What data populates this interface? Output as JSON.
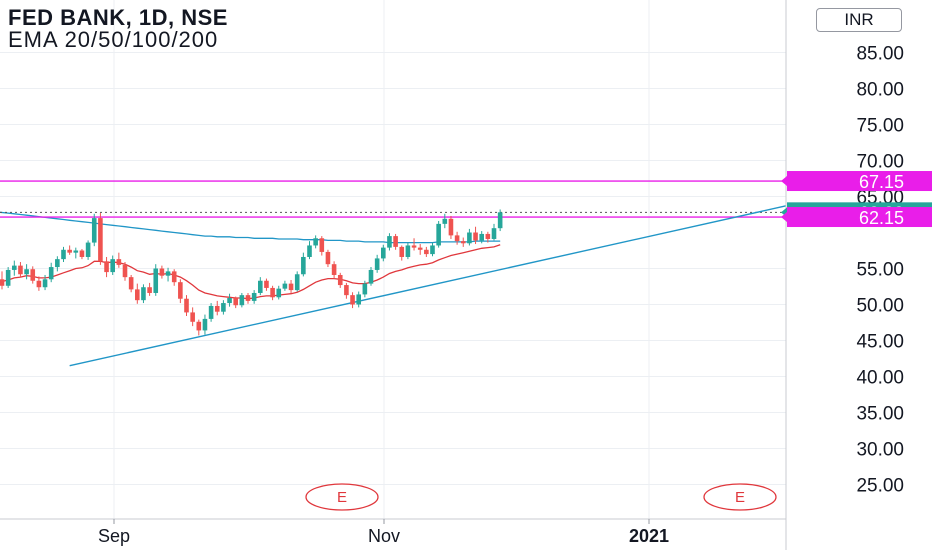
{
  "header": {
    "title": "FED BANK, 1D, NSE",
    "indicator": "EMA 20/50/100/200",
    "currency_button": "INR"
  },
  "colors": {
    "up": "#26a69a",
    "down": "#ef5350",
    "ema_short": "#e0373c",
    "ema_long": "#2196c7",
    "trendline": "#2196c7",
    "resistance_line": "#e91ee9",
    "current_price": "#26a69a",
    "grid": "#eceff3"
  },
  "chart_data": {
    "type": "candlestick",
    "title": "FED BANK, 1D, NSE",
    "subtitle": "EMA 20/50/100/200",
    "y_ticks": [
      "25.00",
      "30.00",
      "35.00",
      "40.00",
      "45.00",
      "50.00",
      "55.00",
      "65.00",
      "70.00",
      "75.00",
      "80.00",
      "85.00"
    ],
    "ylim": [
      22.5,
      89
    ],
    "x_ticks": [
      "Sep",
      "Nov",
      "2021"
    ],
    "grid": true,
    "price_labels": [
      {
        "text": "67.15",
        "value": 67.15,
        "kind": "horizontal-line"
      },
      {
        "text": "62.80",
        "value": 62.8,
        "kind": "last-price"
      },
      {
        "text": "62.15",
        "value": 62.15,
        "kind": "horizontal-line"
      }
    ],
    "event_markers": [
      "E",
      "E"
    ],
    "trendline": {
      "from": {
        "bar": 11,
        "value": 41.5
      },
      "to": {
        "bar": 95,
        "value": 63.7
      }
    },
    "candles": [
      {
        "o": 53.5,
        "h": 54.6,
        "l": 52.1,
        "c": 52.6
      },
      {
        "o": 52.6,
        "h": 55.2,
        "l": 52.3,
        "c": 54.8
      },
      {
        "o": 54.8,
        "h": 56.1,
        "l": 54.0,
        "c": 55.4
      },
      {
        "o": 55.4,
        "h": 55.9,
        "l": 53.8,
        "c": 54.2
      },
      {
        "o": 54.2,
        "h": 55.6,
        "l": 53.5,
        "c": 54.9
      },
      {
        "o": 54.9,
        "h": 55.3,
        "l": 52.9,
        "c": 53.3
      },
      {
        "o": 53.3,
        "h": 53.9,
        "l": 51.9,
        "c": 52.4
      },
      {
        "o": 52.4,
        "h": 54.1,
        "l": 52.0,
        "c": 53.5
      },
      {
        "o": 53.5,
        "h": 55.8,
        "l": 53.1,
        "c": 55.2
      },
      {
        "o": 55.2,
        "h": 56.7,
        "l": 54.6,
        "c": 56.3
      },
      {
        "o": 56.3,
        "h": 58.0,
        "l": 55.9,
        "c": 57.6
      },
      {
        "o": 57.6,
        "h": 58.2,
        "l": 56.9,
        "c": 57.2
      },
      {
        "o": 57.2,
        "h": 57.9,
        "l": 56.4,
        "c": 57.5
      },
      {
        "o": 57.5,
        "h": 57.7,
        "l": 56.3,
        "c": 56.6
      },
      {
        "o": 56.6,
        "h": 58.9,
        "l": 56.2,
        "c": 58.6
      },
      {
        "o": 58.6,
        "h": 62.6,
        "l": 58.1,
        "c": 62.0
      },
      {
        "o": 62.0,
        "h": 62.7,
        "l": 55.5,
        "c": 56.0
      },
      {
        "o": 56.0,
        "h": 56.6,
        "l": 53.8,
        "c": 54.5
      },
      {
        "o": 54.5,
        "h": 56.8,
        "l": 54.1,
        "c": 56.3
      },
      {
        "o": 56.3,
        "h": 57.2,
        "l": 55.1,
        "c": 55.5
      },
      {
        "o": 55.5,
        "h": 55.9,
        "l": 53.3,
        "c": 53.8
      },
      {
        "o": 53.8,
        "h": 54.1,
        "l": 51.7,
        "c": 52.1
      },
      {
        "o": 52.1,
        "h": 52.9,
        "l": 50.1,
        "c": 50.6
      },
      {
        "o": 50.6,
        "h": 52.8,
        "l": 50.2,
        "c": 52.4
      },
      {
        "o": 52.4,
        "h": 53.0,
        "l": 51.2,
        "c": 51.6
      },
      {
        "o": 51.6,
        "h": 55.6,
        "l": 51.2,
        "c": 55.0
      },
      {
        "o": 55.0,
        "h": 55.4,
        "l": 53.6,
        "c": 54.0
      },
      {
        "o": 54.0,
        "h": 55.1,
        "l": 53.2,
        "c": 54.6
      },
      {
        "o": 54.6,
        "h": 54.9,
        "l": 52.6,
        "c": 53.1
      },
      {
        "o": 53.1,
        "h": 53.5,
        "l": 50.2,
        "c": 50.8
      },
      {
        "o": 50.8,
        "h": 51.3,
        "l": 48.4,
        "c": 48.9
      },
      {
        "o": 48.9,
        "h": 49.6,
        "l": 47.0,
        "c": 47.6
      },
      {
        "o": 47.6,
        "h": 47.9,
        "l": 45.7,
        "c": 46.4
      },
      {
        "o": 46.4,
        "h": 48.6,
        "l": 45.8,
        "c": 48.0
      },
      {
        "o": 48.0,
        "h": 50.2,
        "l": 47.6,
        "c": 49.8
      },
      {
        "o": 49.8,
        "h": 50.5,
        "l": 48.5,
        "c": 49.0
      },
      {
        "o": 49.0,
        "h": 50.6,
        "l": 48.6,
        "c": 50.2
      },
      {
        "o": 50.2,
        "h": 51.5,
        "l": 49.7,
        "c": 50.9
      },
      {
        "o": 50.9,
        "h": 51.1,
        "l": 49.5,
        "c": 49.9
      },
      {
        "o": 49.9,
        "h": 51.6,
        "l": 49.6,
        "c": 51.3
      },
      {
        "o": 51.3,
        "h": 51.6,
        "l": 50.1,
        "c": 50.5
      },
      {
        "o": 50.5,
        "h": 52.0,
        "l": 50.1,
        "c": 51.6
      },
      {
        "o": 51.6,
        "h": 53.8,
        "l": 51.3,
        "c": 53.3
      },
      {
        "o": 53.3,
        "h": 53.6,
        "l": 51.9,
        "c": 52.3
      },
      {
        "o": 52.3,
        "h": 52.6,
        "l": 50.6,
        "c": 51.0
      },
      {
        "o": 51.0,
        "h": 52.6,
        "l": 50.7,
        "c": 52.2
      },
      {
        "o": 52.2,
        "h": 53.3,
        "l": 51.9,
        "c": 52.9
      },
      {
        "o": 52.9,
        "h": 53.4,
        "l": 51.6,
        "c": 52.0
      },
      {
        "o": 52.0,
        "h": 54.6,
        "l": 51.8,
        "c": 54.2
      },
      {
        "o": 54.2,
        "h": 57.2,
        "l": 53.9,
        "c": 56.6
      },
      {
        "o": 56.6,
        "h": 58.8,
        "l": 56.3,
        "c": 58.2
      },
      {
        "o": 58.2,
        "h": 59.6,
        "l": 57.8,
        "c": 59.2
      },
      {
        "o": 59.2,
        "h": 59.5,
        "l": 56.8,
        "c": 57.3
      },
      {
        "o": 57.3,
        "h": 57.6,
        "l": 55.2,
        "c": 55.6
      },
      {
        "o": 55.6,
        "h": 56.0,
        "l": 53.6,
        "c": 54.1
      },
      {
        "o": 54.1,
        "h": 54.4,
        "l": 52.3,
        "c": 52.7
      },
      {
        "o": 52.7,
        "h": 53.0,
        "l": 50.8,
        "c": 51.3
      },
      {
        "o": 51.3,
        "h": 51.7,
        "l": 49.5,
        "c": 50.0
      },
      {
        "o": 50.0,
        "h": 51.8,
        "l": 49.6,
        "c": 51.4
      },
      {
        "o": 51.4,
        "h": 53.3,
        "l": 51.0,
        "c": 52.9
      },
      {
        "o": 52.9,
        "h": 55.2,
        "l": 52.6,
        "c": 54.8
      },
      {
        "o": 54.8,
        "h": 56.9,
        "l": 54.4,
        "c": 56.4
      },
      {
        "o": 56.4,
        "h": 58.3,
        "l": 56.0,
        "c": 57.9
      },
      {
        "o": 57.9,
        "h": 59.9,
        "l": 57.5,
        "c": 59.5
      },
      {
        "o": 59.5,
        "h": 59.8,
        "l": 57.6,
        "c": 58.0
      },
      {
        "o": 58.0,
        "h": 58.2,
        "l": 56.1,
        "c": 56.6
      },
      {
        "o": 56.6,
        "h": 58.6,
        "l": 56.3,
        "c": 58.2
      },
      {
        "o": 58.2,
        "h": 59.2,
        "l": 57.5,
        "c": 57.9
      },
      {
        "o": 57.9,
        "h": 58.4,
        "l": 56.9,
        "c": 57.6
      },
      {
        "o": 57.6,
        "h": 58.0,
        "l": 56.6,
        "c": 57.0
      },
      {
        "o": 57.0,
        "h": 58.6,
        "l": 56.7,
        "c": 58.2
      },
      {
        "o": 58.2,
        "h": 61.6,
        "l": 57.9,
        "c": 61.2
      },
      {
        "o": 61.2,
        "h": 62.6,
        "l": 60.6,
        "c": 61.9
      },
      {
        "o": 61.9,
        "h": 62.3,
        "l": 59.1,
        "c": 59.6
      },
      {
        "o": 59.6,
        "h": 60.1,
        "l": 58.3,
        "c": 58.8
      },
      {
        "o": 58.8,
        "h": 59.3,
        "l": 58.0,
        "c": 58.5
      },
      {
        "o": 58.5,
        "h": 60.5,
        "l": 58.2,
        "c": 60.0
      },
      {
        "o": 60.0,
        "h": 60.8,
        "l": 58.4,
        "c": 58.9
      },
      {
        "o": 58.9,
        "h": 60.2,
        "l": 58.5,
        "c": 59.8
      },
      {
        "o": 59.8,
        "h": 60.1,
        "l": 58.6,
        "c": 59.1
      },
      {
        "o": 59.1,
        "h": 61.2,
        "l": 58.9,
        "c": 60.6
      },
      {
        "o": 60.6,
        "h": 63.2,
        "l": 60.2,
        "c": 62.8
      }
    ],
    "ema_short_values": [
      53.2,
      53.4,
      53.7,
      53.8,
      54.0,
      53.9,
      53.7,
      53.7,
      53.8,
      54.1,
      54.4,
      54.7,
      55.0,
      55.1,
      55.4,
      56.0,
      56.0,
      55.8,
      55.9,
      55.8,
      55.6,
      55.2,
      54.7,
      54.5,
      54.2,
      54.3,
      54.2,
      54.3,
      54.1,
      53.8,
      53.3,
      52.7,
      52.0,
      51.6,
      51.4,
      51.2,
      51.1,
      51.0,
      50.9,
      50.9,
      50.8,
      50.9,
      51.1,
      51.2,
      51.2,
      51.3,
      51.4,
      51.5,
      51.7,
      52.1,
      52.6,
      53.1,
      53.4,
      53.6,
      53.6,
      53.5,
      53.3,
      53.0,
      52.9,
      52.9,
      53.1,
      53.4,
      53.8,
      54.3,
      54.6,
      54.8,
      55.1,
      55.3,
      55.5,
      55.6,
      55.8,
      56.2,
      56.5,
      56.8,
      57.0,
      57.2,
      57.4,
      57.6,
      57.8,
      57.9,
      58.0,
      58.3
    ],
    "ema_long_values": [
      62.8,
      62.7,
      62.6,
      62.5,
      62.4,
      62.3,
      62.2,
      62.1,
      62.0,
      61.9,
      61.8,
      61.7,
      61.6,
      61.5,
      61.4,
      61.3,
      61.2,
      61.1,
      61.0,
      60.9,
      60.8,
      60.7,
      60.6,
      60.5,
      60.4,
      60.3,
      60.2,
      60.1,
      60.0,
      59.9,
      59.8,
      59.7,
      59.6,
      59.5,
      59.5,
      59.4,
      59.4,
      59.4,
      59.3,
      59.3,
      59.3,
      59.2,
      59.2,
      59.2,
      59.2,
      59.1,
      59.1,
      59.1,
      59.1,
      59.0,
      59.0,
      59.0,
      59.0,
      58.9,
      58.9,
      58.9,
      58.8,
      58.8,
      58.8,
      58.7,
      58.7,
      58.7,
      58.7,
      58.6,
      58.6,
      58.6,
      58.6,
      58.6,
      58.6,
      58.6,
      58.6,
      58.7,
      58.7,
      58.7,
      58.7,
      58.7,
      58.7,
      58.8,
      58.8,
      58.8,
      58.8,
      58.8
    ]
  }
}
